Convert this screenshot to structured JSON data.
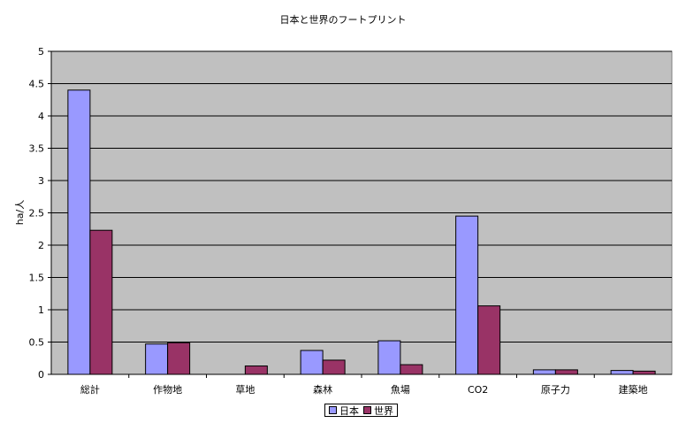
{
  "chart_data": {
    "type": "bar",
    "title": "日本と世界のフートプリント",
    "xlabel": "",
    "ylabel": "ha/人",
    "ylim": [
      0,
      5
    ],
    "yticks": [
      "0",
      "0.5",
      "1",
      "1.5",
      "2",
      "2.5",
      "3",
      "3.5",
      "4",
      "4.5",
      "5"
    ],
    "grid": true,
    "legend_position": "bottom",
    "categories": [
      "総計",
      "作物地",
      "草地",
      "森林",
      "魚場",
      "CO2",
      "原子力",
      "建築地"
    ],
    "series": [
      {
        "name": "日本",
        "color": "#9999FF",
        "values": [
          4.4,
          0.47,
          0.0,
          0.37,
          0.52,
          2.45,
          0.07,
          0.06
        ]
      },
      {
        "name": "世界",
        "color": "#993366",
        "values": [
          2.23,
          0.49,
          0.13,
          0.22,
          0.15,
          1.06,
          0.07,
          0.05
        ]
      }
    ],
    "plot_background": "#C0C0C0"
  }
}
